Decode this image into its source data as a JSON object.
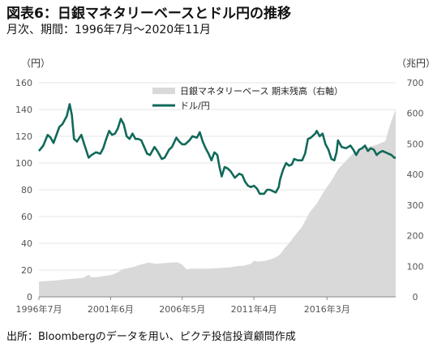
{
  "header": {
    "title": "図表6：日銀マネタリーベースとドル円の推移",
    "subtitle": "月次、期間：1996年7月～2020年11月"
  },
  "footer": {
    "source": "出所：Bloombergのデータを用い、ピクテ投信投資顧問作成"
  },
  "colors": {
    "line": "#11695a",
    "area": "#d9d9d9"
  },
  "chart_data": {
    "type": "line",
    "title": "",
    "left_axis": {
      "unit_label": "（円）",
      "ylim": [
        0,
        160
      ],
      "ticks": [
        "0",
        "20",
        "40",
        "60",
        "80",
        "100",
        "120",
        "140",
        "160"
      ]
    },
    "right_axis": {
      "unit_label": "（兆円）",
      "ylim": [
        0,
        700
      ],
      "ticks": [
        "0",
        "100",
        "200",
        "300",
        "400",
        "500",
        "600",
        "700"
      ]
    },
    "x_axis": {
      "xlim": [
        1996.5,
        2020.9
      ],
      "ticks": [
        {
          "x": 1996.5,
          "label": "1996年7月"
        },
        {
          "x": 2001.4,
          "label": "2001年6月"
        },
        {
          "x": 2006.3,
          "label": "2006年5月"
        },
        {
          "x": 2011.2,
          "label": "2011年4月"
        },
        {
          "x": 2016.2,
          "label": "2016年3月"
        }
      ]
    },
    "grid": true,
    "legend": {
      "position": "top-center",
      "entries": [
        {
          "label": "日銀マネタリーベース 期末残高（右軸）",
          "kind": "area"
        },
        {
          "label": "ドル/円",
          "kind": "line"
        }
      ]
    },
    "series": [
      {
        "name": "日銀マネタリーベース 期末残高（右軸）",
        "axis": "right",
        "kind": "area",
        "points": [
          [
            1996.5,
            50
          ],
          [
            1997.5,
            53
          ],
          [
            1998.5,
            58
          ],
          [
            1999.5,
            62
          ],
          [
            1999.9,
            72
          ],
          [
            2000.1,
            64
          ],
          [
            2000.5,
            65
          ],
          [
            2001.5,
            72
          ],
          [
            2001.9,
            80
          ],
          [
            2002.2,
            90
          ],
          [
            2003.0,
            98
          ],
          [
            2003.5,
            106
          ],
          [
            2004.0,
            112
          ],
          [
            2004.5,
            108
          ],
          [
            2005.0,
            110
          ],
          [
            2005.5,
            112
          ],
          [
            2006.0,
            113
          ],
          [
            2006.3,
            105
          ],
          [
            2006.6,
            90
          ],
          [
            2007.0,
            92
          ],
          [
            2008.0,
            92
          ],
          [
            2008.5,
            93
          ],
          [
            2009.0,
            95
          ],
          [
            2009.5,
            96
          ],
          [
            2010.0,
            100
          ],
          [
            2010.5,
            102
          ],
          [
            2011.0,
            108
          ],
          [
            2011.2,
            118
          ],
          [
            2011.5,
            115
          ],
          [
            2012.0,
            118
          ],
          [
            2012.5,
            125
          ],
          [
            2012.9,
            135
          ],
          [
            2013.1,
            145
          ],
          [
            2013.3,
            160
          ],
          [
            2013.6,
            175
          ],
          [
            2014.0,
            200
          ],
          [
            2014.5,
            230
          ],
          [
            2015.0,
            275
          ],
          [
            2015.5,
            305
          ],
          [
            2016.0,
            345
          ],
          [
            2016.5,
            380
          ],
          [
            2017.0,
            420
          ],
          [
            2017.5,
            445
          ],
          [
            2018.0,
            470
          ],
          [
            2018.5,
            485
          ],
          [
            2019.0,
            490
          ],
          [
            2019.5,
            495
          ],
          [
            2020.0,
            505
          ],
          [
            2020.2,
            510
          ],
          [
            2020.4,
            545
          ],
          [
            2020.6,
            575
          ],
          [
            2020.8,
            600
          ],
          [
            2020.9,
            612
          ]
        ]
      },
      {
        "name": "ドル/円",
        "axis": "left",
        "kind": "line",
        "points": [
          [
            1996.5,
            109
          ],
          [
            1996.8,
            113
          ],
          [
            1997.1,
            121
          ],
          [
            1997.3,
            119
          ],
          [
            1997.5,
            115
          ],
          [
            1997.7,
            121
          ],
          [
            1997.9,
            127
          ],
          [
            1998.1,
            129
          ],
          [
            1998.4,
            135
          ],
          [
            1998.6,
            144
          ],
          [
            1998.75,
            136
          ],
          [
            1998.9,
            118
          ],
          [
            1999.1,
            116
          ],
          [
            1999.4,
            121
          ],
          [
            1999.6,
            114
          ],
          [
            1999.9,
            104
          ],
          [
            2000.1,
            106
          ],
          [
            2000.4,
            108
          ],
          [
            2000.7,
            107
          ],
          [
            2000.9,
            111
          ],
          [
            2001.1,
            118
          ],
          [
            2001.3,
            124
          ],
          [
            2001.5,
            121
          ],
          [
            2001.7,
            122
          ],
          [
            2001.9,
            126
          ],
          [
            2002.1,
            133
          ],
          [
            2002.3,
            129
          ],
          [
            2002.5,
            120
          ],
          [
            2002.7,
            118
          ],
          [
            2002.9,
            122
          ],
          [
            2003.1,
            118
          ],
          [
            2003.3,
            118
          ],
          [
            2003.5,
            117
          ],
          [
            2003.7,
            112
          ],
          [
            2003.9,
            107
          ],
          [
            2004.1,
            106
          ],
          [
            2004.4,
            112
          ],
          [
            2004.6,
            109
          ],
          [
            2004.9,
            103
          ],
          [
            2005.1,
            104
          ],
          [
            2005.4,
            110
          ],
          [
            2005.6,
            112
          ],
          [
            2005.9,
            119
          ],
          [
            2006.1,
            116
          ],
          [
            2006.3,
            114
          ],
          [
            2006.5,
            114
          ],
          [
            2006.8,
            117
          ],
          [
            2007.0,
            120
          ],
          [
            2007.3,
            119
          ],
          [
            2007.5,
            123
          ],
          [
            2007.7,
            116
          ],
          [
            2007.9,
            111
          ],
          [
            2008.1,
            107
          ],
          [
            2008.3,
            102
          ],
          [
            2008.5,
            108
          ],
          [
            2008.7,
            106
          ],
          [
            2008.85,
            97
          ],
          [
            2009.0,
            90
          ],
          [
            2009.2,
            97
          ],
          [
            2009.4,
            96
          ],
          [
            2009.6,
            94
          ],
          [
            2009.9,
            89
          ],
          [
            2010.2,
            92
          ],
          [
            2010.4,
            91
          ],
          [
            2010.6,
            86
          ],
          [
            2010.8,
            83
          ],
          [
            2011.0,
            82
          ],
          [
            2011.2,
            83
          ],
          [
            2011.4,
            81
          ],
          [
            2011.6,
            77
          ],
          [
            2011.9,
            77
          ],
          [
            2012.1,
            80
          ],
          [
            2012.3,
            80
          ],
          [
            2012.5,
            79
          ],
          [
            2012.7,
            78
          ],
          [
            2012.9,
            82
          ],
          [
            2013.0,
            88
          ],
          [
            2013.2,
            95
          ],
          [
            2013.4,
            100
          ],
          [
            2013.6,
            98
          ],
          [
            2013.8,
            99
          ],
          [
            2013.95,
            103
          ],
          [
            2014.2,
            102
          ],
          [
            2014.5,
            102
          ],
          [
            2014.7,
            107
          ],
          [
            2014.9,
            118
          ],
          [
            2015.1,
            119
          ],
          [
            2015.4,
            122
          ],
          [
            2015.5,
            124
          ],
          [
            2015.7,
            120
          ],
          [
            2015.9,
            122
          ],
          [
            2016.1,
            114
          ],
          [
            2016.3,
            110
          ],
          [
            2016.5,
            103
          ],
          [
            2016.7,
            102
          ],
          [
            2016.85,
            108
          ],
          [
            2016.95,
            117
          ],
          [
            2017.2,
            112
          ],
          [
            2017.5,
            111
          ],
          [
            2017.8,
            113
          ],
          [
            2018.0,
            110
          ],
          [
            2018.2,
            106
          ],
          [
            2018.4,
            110
          ],
          [
            2018.6,
            111
          ],
          [
            2018.8,
            113
          ],
          [
            2019.0,
            109
          ],
          [
            2019.2,
            111
          ],
          [
            2019.4,
            110
          ],
          [
            2019.6,
            106
          ],
          [
            2019.8,
            108
          ],
          [
            2020.0,
            109
          ],
          [
            2020.2,
            108
          ],
          [
            2020.4,
            107
          ],
          [
            2020.6,
            106
          ],
          [
            2020.8,
            104
          ],
          [
            2020.9,
            104
          ]
        ]
      }
    ]
  }
}
